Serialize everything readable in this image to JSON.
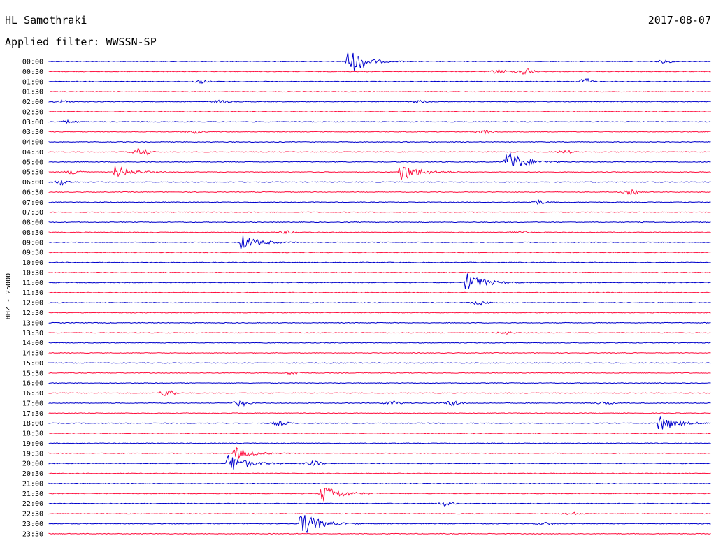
{
  "header": {
    "station": "HL Samothraki",
    "date": "2017-08-07",
    "filter": "Applied filter: WWSSN-SP"
  },
  "chart_data": {
    "type": "helicorder",
    "title": "HL Samothraki",
    "ylabel": "HHZ - 25000",
    "colors": [
      "#0000cc",
      "#ff1040"
    ],
    "time_labels": [
      "00:00",
      "00:30",
      "01:00",
      "01:30",
      "02:00",
      "02:30",
      "03:00",
      "03:30",
      "04:00",
      "04:30",
      "05:00",
      "05:30",
      "06:00",
      "06:30",
      "07:00",
      "07:30",
      "08:00",
      "08:30",
      "09:00",
      "09:30",
      "10:00",
      "10:30",
      "11:00",
      "11:30",
      "12:00",
      "12:30",
      "13:00",
      "13:30",
      "14:00",
      "14:30",
      "15:00",
      "15:30",
      "16:00",
      "16:30",
      "17:00",
      "17:30",
      "18:00",
      "18:30",
      "19:00",
      "19:30",
      "20:00",
      "20:30",
      "21:00",
      "21:30",
      "22:00",
      "22:30",
      "23:00",
      "23:30"
    ],
    "rows": [
      {
        "events": [
          {
            "x": 0.45,
            "amp": 17,
            "type": "quake"
          },
          {
            "x": 0.47,
            "amp": 4,
            "type": "burst"
          },
          {
            "x": 0.93,
            "amp": 2,
            "type": "burst"
          }
        ]
      },
      {
        "events": [
          {
            "x": 0.68,
            "amp": 3,
            "type": "burst"
          },
          {
            "x": 0.72,
            "amp": 5,
            "type": "burst"
          }
        ]
      },
      {
        "events": [
          {
            "x": 0.23,
            "amp": 2,
            "type": "burst"
          },
          {
            "x": 0.81,
            "amp": 4,
            "type": "burst"
          }
        ]
      },
      {
        "events": []
      },
      {
        "events": [
          {
            "x": 0.02,
            "amp": 2,
            "type": "burst"
          },
          {
            "x": 0.26,
            "amp": 2,
            "type": "burst"
          },
          {
            "x": 0.56,
            "amp": 2,
            "type": "burst"
          }
        ]
      },
      {
        "events": []
      },
      {
        "events": [
          {
            "x": 0.03,
            "amp": 2,
            "type": "burst"
          }
        ]
      },
      {
        "events": [
          {
            "x": 0.22,
            "amp": 2,
            "type": "burst"
          },
          {
            "x": 0.66,
            "amp": 3,
            "type": "burst"
          }
        ]
      },
      {
        "events": []
      },
      {
        "events": [
          {
            "x": 0.14,
            "amp": 7,
            "type": "burst"
          },
          {
            "x": 0.78,
            "amp": 2,
            "type": "burst"
          }
        ]
      },
      {
        "events": [
          {
            "x": 0.69,
            "amp": 18,
            "type": "quake"
          }
        ]
      },
      {
        "events": [
          {
            "x": 0.04,
            "amp": 4,
            "type": "burst"
          },
          {
            "x": 0.1,
            "amp": 9,
            "type": "quake"
          },
          {
            "x": 0.53,
            "amp": 15,
            "type": "quake"
          }
        ]
      },
      {
        "events": [
          {
            "x": 0.02,
            "amp": 4,
            "type": "burst"
          }
        ]
      },
      {
        "events": [
          {
            "x": 0.88,
            "amp": 3,
            "type": "burst"
          }
        ]
      },
      {
        "events": [
          {
            "x": 0.74,
            "amp": 3,
            "type": "burst"
          }
        ]
      },
      {
        "events": []
      },
      {
        "events": []
      },
      {
        "events": [
          {
            "x": 0.36,
            "amp": 2,
            "type": "burst"
          },
          {
            "x": 0.71,
            "amp": 2,
            "type": "burst"
          }
        ]
      },
      {
        "events": [
          {
            "x": 0.29,
            "amp": 11,
            "type": "quake"
          }
        ]
      },
      {
        "events": []
      },
      {
        "events": []
      },
      {
        "events": []
      },
      {
        "events": [
          {
            "x": 0.63,
            "amp": 15,
            "type": "quake"
          }
        ]
      },
      {
        "events": []
      },
      {
        "events": [
          {
            "x": 0.65,
            "amp": 3,
            "type": "burst"
          }
        ]
      },
      {
        "events": []
      },
      {
        "events": []
      },
      {
        "events": [
          {
            "x": 0.69,
            "amp": 2,
            "type": "burst"
          }
        ]
      },
      {
        "events": []
      },
      {
        "events": []
      },
      {
        "events": []
      },
      {
        "events": [
          {
            "x": 0.37,
            "amp": 2,
            "type": "burst"
          }
        ]
      },
      {
        "events": []
      },
      {
        "events": [
          {
            "x": 0.18,
            "amp": 5,
            "type": "burst"
          }
        ]
      },
      {
        "events": [
          {
            "x": 0.29,
            "amp": 4,
            "type": "burst"
          },
          {
            "x": 0.52,
            "amp": 3,
            "type": "burst"
          },
          {
            "x": 0.61,
            "amp": 4,
            "type": "burst"
          },
          {
            "x": 0.84,
            "amp": 2,
            "type": "burst"
          }
        ]
      },
      {
        "events": []
      },
      {
        "events": [
          {
            "x": 0.35,
            "amp": 3,
            "type": "burst"
          },
          {
            "x": 0.92,
            "amp": 13,
            "type": "quake"
          }
        ]
      },
      {
        "events": []
      },
      {
        "events": []
      },
      {
        "events": [
          {
            "x": 0.28,
            "amp": 9,
            "type": "quake"
          }
        ]
      },
      {
        "events": [
          {
            "x": 0.27,
            "amp": 15,
            "type": "quake"
          },
          {
            "x": 0.4,
            "amp": 3,
            "type": "burst"
          }
        ]
      },
      {
        "events": []
      },
      {
        "events": []
      },
      {
        "events": [
          {
            "x": 0.41,
            "amp": 16,
            "type": "quake"
          }
        ]
      },
      {
        "events": [
          {
            "x": 0.6,
            "amp": 3,
            "type": "burst"
          }
        ]
      },
      {
        "events": [
          {
            "x": 0.79,
            "amp": 2,
            "type": "burst"
          }
        ]
      },
      {
        "events": [
          {
            "x": 0.38,
            "amp": 20,
            "type": "quake"
          },
          {
            "x": 0.75,
            "amp": 2,
            "type": "burst"
          }
        ]
      },
      {
        "events": []
      }
    ]
  }
}
